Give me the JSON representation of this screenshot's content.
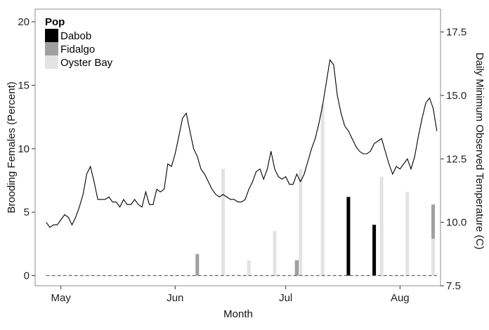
{
  "chart_data": {
    "type": "bar",
    "xlabel": "Month",
    "ylabel": "Brooding Females (Percent)",
    "y2label": "Daily Minimum Observed Temperature (C)",
    "x_ticks": [
      "May",
      "Jun",
      "Jul",
      "Aug"
    ],
    "x_tick_dates": [
      "2017-05-01",
      "2017-06-01",
      "2017-07-01",
      "2017-08-01"
    ],
    "x_range": [
      "2017-04-24",
      "2017-08-12"
    ],
    "ylim": [
      -0.8,
      21
    ],
    "y_ticks": [
      0,
      5,
      10,
      15,
      20
    ],
    "y2lim": [
      7.5,
      18.4
    ],
    "y2_ticks": [
      7.5,
      10.0,
      12.5,
      15.0,
      17.5
    ],
    "grid": false,
    "legend": {
      "title": "Pop",
      "placement": "top-left",
      "entries": [
        {
          "name": "Dabob",
          "color": "#000000"
        },
        {
          "name": "Fidalgo",
          "color": "#a0a0a0"
        },
        {
          "name": "Oyster Bay",
          "color": "#e3e3e3"
        }
      ]
    },
    "bars": [
      {
        "date": "2017-06-07",
        "series": "Fidalgo",
        "value": 1.7
      },
      {
        "date": "2017-06-14",
        "series": "Oyster Bay",
        "value": 8.4
      },
      {
        "date": "2017-06-21",
        "series": "Oyster Bay",
        "value": 1.2
      },
      {
        "date": "2017-06-28",
        "series": "Fidalgo",
        "value": 1.2
      },
      {
        "date": "2017-06-28",
        "series": "Oyster Bay",
        "value": 3.5
      },
      {
        "date": "2017-07-04",
        "series": "Dabob",
        "value": 1.2
      },
      {
        "date": "2017-07-04",
        "series": "Fidalgo",
        "value": 1.2
      },
      {
        "date": "2017-07-05",
        "series": "Oyster Bay",
        "value": 8.4
      },
      {
        "date": "2017-07-11",
        "series": "Oyster Bay",
        "value": 13.5
      },
      {
        "date": "2017-07-18",
        "series": "Dabob",
        "value": 6.2
      },
      {
        "date": "2017-07-25",
        "series": "Dabob",
        "value": 4.0
      },
      {
        "date": "2017-07-27",
        "series": "Oyster Bay",
        "value": 7.8
      },
      {
        "date": "2017-08-03",
        "series": "Oyster Bay",
        "value": 6.6
      },
      {
        "date": "2017-08-10",
        "series": "Dabob",
        "value": 4.5
      },
      {
        "date": "2017-08-10",
        "series": "Fidalgo",
        "value": 5.6
      },
      {
        "date": "2017-08-10",
        "series": "Oyster Bay",
        "value": 2.9
      }
    ],
    "temperature": {
      "axis": "right",
      "dates": [
        "2017-04-27",
        "2017-04-28",
        "2017-04-29",
        "2017-04-30",
        "2017-05-01",
        "2017-05-02",
        "2017-05-03",
        "2017-05-04",
        "2017-05-05",
        "2017-05-06",
        "2017-05-07",
        "2017-05-08",
        "2017-05-09",
        "2017-05-10",
        "2017-05-11",
        "2017-05-12",
        "2017-05-13",
        "2017-05-14",
        "2017-05-15",
        "2017-05-16",
        "2017-05-17",
        "2017-05-18",
        "2017-05-19",
        "2017-05-20",
        "2017-05-21",
        "2017-05-22",
        "2017-05-23",
        "2017-05-24",
        "2017-05-25",
        "2017-05-26",
        "2017-05-27",
        "2017-05-28",
        "2017-05-29",
        "2017-05-30",
        "2017-05-31",
        "2017-06-01",
        "2017-06-02",
        "2017-06-03",
        "2017-06-04",
        "2017-06-05",
        "2017-06-06",
        "2017-06-07",
        "2017-06-08",
        "2017-06-09",
        "2017-06-10",
        "2017-06-11",
        "2017-06-12",
        "2017-06-13",
        "2017-06-14",
        "2017-06-15",
        "2017-06-16",
        "2017-06-17",
        "2017-06-18",
        "2017-06-19",
        "2017-06-20",
        "2017-06-21",
        "2017-06-22",
        "2017-06-23",
        "2017-06-24",
        "2017-06-25",
        "2017-06-26",
        "2017-06-27",
        "2017-06-28",
        "2017-06-29",
        "2017-06-30",
        "2017-07-01",
        "2017-07-02",
        "2017-07-03",
        "2017-07-04",
        "2017-07-05",
        "2017-07-06",
        "2017-07-07",
        "2017-07-08",
        "2017-07-09",
        "2017-07-10",
        "2017-07-11",
        "2017-07-12",
        "2017-07-13",
        "2017-07-14",
        "2017-07-15",
        "2017-07-16",
        "2017-07-17",
        "2017-07-18",
        "2017-07-19",
        "2017-07-20",
        "2017-07-21",
        "2017-07-22",
        "2017-07-23",
        "2017-07-24",
        "2017-07-25",
        "2017-07-26",
        "2017-07-27",
        "2017-07-28",
        "2017-07-29",
        "2017-07-30",
        "2017-07-31",
        "2017-08-01",
        "2017-08-02",
        "2017-08-03",
        "2017-08-04",
        "2017-08-05",
        "2017-08-06",
        "2017-08-07",
        "2017-08-08",
        "2017-08-09",
        "2017-08-10",
        "2017-08-11"
      ],
      "values": [
        10.0,
        9.8,
        9.9,
        9.9,
        10.1,
        10.3,
        10.2,
        9.9,
        10.2,
        10.6,
        11.1,
        11.9,
        12.2,
        11.6,
        10.9,
        10.9,
        10.9,
        11.0,
        10.8,
        10.8,
        10.6,
        10.9,
        10.7,
        10.7,
        10.9,
        10.7,
        10.6,
        11.2,
        10.7,
        10.7,
        11.3,
        11.2,
        11.3,
        12.3,
        12.2,
        12.7,
        13.4,
        14.1,
        14.3,
        13.6,
        12.9,
        12.6,
        12.1,
        11.9,
        11.6,
        11.3,
        11.1,
        11.0,
        11.1,
        11.0,
        10.9,
        10.9,
        10.8,
        10.8,
        10.9,
        11.3,
        11.6,
        12.0,
        12.1,
        11.7,
        12.1,
        12.8,
        12.1,
        11.8,
        11.7,
        11.8,
        11.5,
        11.5,
        11.9,
        11.6,
        11.9,
        12.4,
        12.9,
        13.3,
        13.9,
        14.6,
        15.5,
        16.4,
        16.2,
        15.0,
        14.3,
        13.8,
        13.6,
        13.3,
        13.0,
        12.8,
        12.7,
        12.7,
        12.8,
        13.1,
        13.2,
        13.3,
        12.8,
        12.3,
        11.9,
        12.2,
        12.1,
        12.3,
        12.5,
        12.1,
        12.6,
        13.4,
        14.1,
        14.7,
        14.9,
        14.5,
        13.6
      ]
    }
  }
}
